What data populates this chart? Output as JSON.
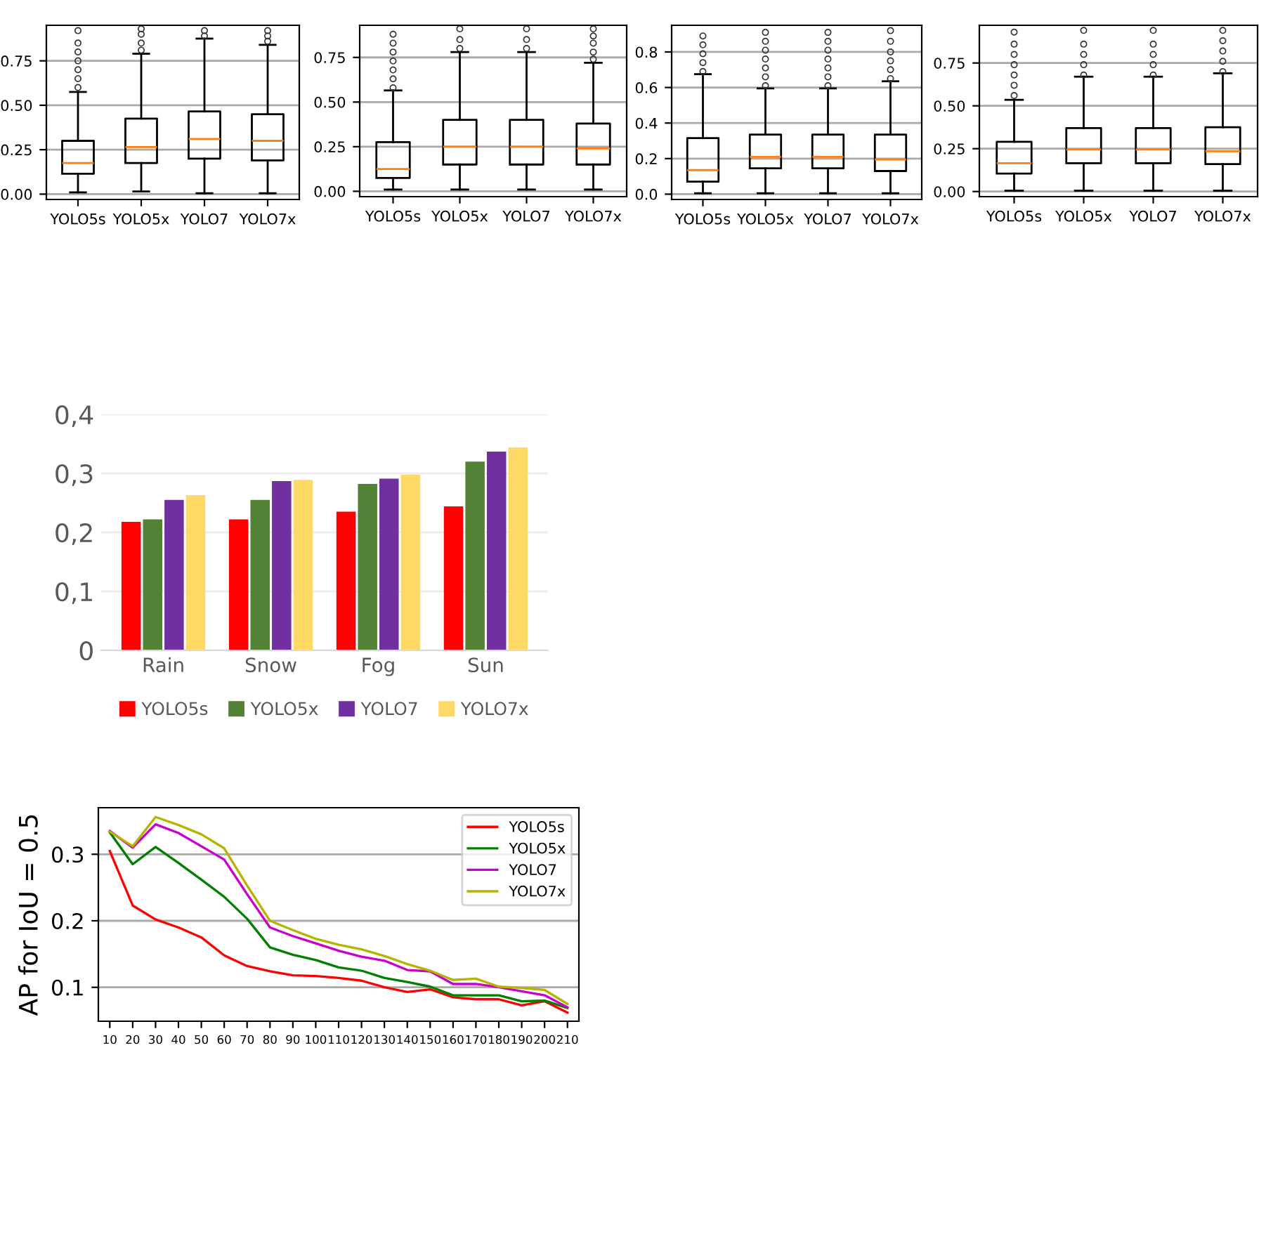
{
  "chart_data": [
    {
      "type": "box",
      "categories": [
        "YOLO5s",
        "YOLO5x",
        "YOLO7",
        "YOLO7x"
      ],
      "ylim": [
        -0.03,
        0.95
      ],
      "yticks": [
        {
          "value": 0,
          "label": "0.00"
        },
        0.25,
        {
          "value": 0.5,
          "label": "0.50"
        },
        0.75
      ],
      "grid": "y",
      "boxes": [
        {
          "low": 0.01,
          "q1": 0.115,
          "median": 0.175,
          "q3": 0.3,
          "high": 0.575,
          "outliers": [
            0.6,
            0.65,
            0.7,
            0.75,
            0.8,
            0.85,
            0.92
          ]
        },
        {
          "low": 0.015,
          "q1": 0.175,
          "median": 0.265,
          "q3": 0.425,
          "high": 0.79,
          "outliers": [
            0.81,
            0.85,
            0.9,
            0.93
          ]
        },
        {
          "low": 0.005,
          "q1": 0.2,
          "median": 0.31,
          "q3": 0.465,
          "high": 0.875,
          "outliers": [
            0.89,
            0.92
          ]
        },
        {
          "low": 0.005,
          "q1": 0.19,
          "median": 0.3,
          "q3": 0.45,
          "high": 0.84,
          "outliers": [
            0.86,
            0.89,
            0.92
          ]
        }
      ]
    },
    {
      "type": "box",
      "categories": [
        "YOLO5s",
        "YOLO5x",
        "YOLO7",
        "YOLO7x"
      ],
      "ylim": [
        -0.03,
        0.93
      ],
      "yticks": [
        {
          "value": 0,
          "label": "0.00"
        },
        0.25,
        {
          "value": 0.5,
          "label": "0.50"
        },
        0.75
      ],
      "grid": "y",
      "boxes": [
        {
          "low": 0.01,
          "q1": 0.075,
          "median": 0.125,
          "q3": 0.275,
          "high": 0.565,
          "outliers": [
            0.58,
            0.63,
            0.68,
            0.73,
            0.78,
            0.83,
            0.88
          ]
        },
        {
          "low": 0.01,
          "q1": 0.15,
          "median": 0.25,
          "q3": 0.4,
          "high": 0.78,
          "outliers": [
            0.8,
            0.85,
            0.91
          ]
        },
        {
          "low": 0.01,
          "q1": 0.15,
          "median": 0.25,
          "q3": 0.4,
          "high": 0.78,
          "outliers": [
            0.8,
            0.85,
            0.91
          ]
        },
        {
          "low": 0.01,
          "q1": 0.15,
          "median": 0.24,
          "q3": 0.38,
          "high": 0.72,
          "outliers": [
            0.74,
            0.78,
            0.83,
            0.87,
            0.91
          ]
        }
      ]
    },
    {
      "type": "box",
      "categories": [
        "YOLO5s",
        "YOLO5x",
        "YOLO7",
        "YOLO7x"
      ],
      "ylim": [
        -0.03,
        0.95
      ],
      "yticks": [
        {
          "value": 0,
          "label": "0.0"
        },
        0.2,
        0.4,
        0.6,
        0.8
      ],
      "grid": "y",
      "boxes": [
        {
          "low": 0.005,
          "q1": 0.07,
          "median": 0.135,
          "q3": 0.315,
          "high": 0.675,
          "outliers": [
            0.69,
            0.74,
            0.79,
            0.84,
            0.89
          ]
        },
        {
          "low": 0.005,
          "q1": 0.145,
          "median": 0.21,
          "q3": 0.335,
          "high": 0.595,
          "outliers": [
            0.61,
            0.66,
            0.71,
            0.76,
            0.81,
            0.86,
            0.91
          ]
        },
        {
          "low": 0.005,
          "q1": 0.145,
          "median": 0.21,
          "q3": 0.335,
          "high": 0.595,
          "outliers": [
            0.61,
            0.66,
            0.71,
            0.76,
            0.81,
            0.86,
            0.91
          ]
        },
        {
          "low": 0.005,
          "q1": 0.13,
          "median": 0.195,
          "q3": 0.335,
          "high": 0.635,
          "outliers": [
            0.65,
            0.7,
            0.75,
            0.8,
            0.86,
            0.92
          ]
        }
      ]
    },
    {
      "type": "box",
      "categories": [
        "YOLO5s",
        "YOLO5x",
        "YOLO7",
        "YOLO7x"
      ],
      "ylim": [
        -0.03,
        0.97
      ],
      "yticks": [
        {
          "value": 0,
          "label": "0.00"
        },
        0.25,
        {
          "value": 0.5,
          "label": "0.50"
        },
        0.75
      ],
      "grid": "y",
      "boxes": [
        {
          "low": 0.005,
          "q1": 0.105,
          "median": 0.165,
          "q3": 0.29,
          "high": 0.535,
          "outliers": [
            0.56,
            0.62,
            0.68,
            0.74,
            0.8,
            0.86,
            0.93
          ]
        },
        {
          "low": 0.005,
          "q1": 0.165,
          "median": 0.245,
          "q3": 0.37,
          "high": 0.67,
          "outliers": [
            0.68,
            0.74,
            0.8,
            0.86,
            0.94
          ]
        },
        {
          "low": 0.005,
          "q1": 0.165,
          "median": 0.245,
          "q3": 0.37,
          "high": 0.67,
          "outliers": [
            0.68,
            0.74,
            0.8,
            0.86,
            0.94
          ]
        },
        {
          "low": 0.005,
          "q1": 0.16,
          "median": 0.235,
          "q3": 0.375,
          "high": 0.69,
          "outliers": [
            0.7,
            0.76,
            0.82,
            0.88,
            0.94
          ]
        }
      ]
    },
    {
      "type": "bar",
      "categories": [
        "Rain",
        "Snow",
        "Fog",
        "Sun"
      ],
      "ylim": [
        0,
        0.4
      ],
      "yticks": [
        0,
        {
          "value": 0.1,
          "label": "0,1"
        },
        {
          "value": 0.2,
          "label": "0,2"
        },
        {
          "value": 0.3,
          "label": "0,3"
        },
        {
          "value": 0.4,
          "label": "0,4"
        }
      ],
      "grid": "y",
      "legend": "bottom",
      "series": [
        {
          "name": "YOLO5s",
          "color": "#ff0000",
          "values": [
            0.218,
            0.222,
            0.235,
            0.244
          ]
        },
        {
          "name": "YOLO5x",
          "color": "#538135",
          "values": [
            0.222,
            0.255,
            0.282,
            0.32
          ]
        },
        {
          "name": "YOLO7",
          "color": "#7030a0",
          "values": [
            0.255,
            0.287,
            0.291,
            0.337
          ]
        },
        {
          "name": "YOLO7x",
          "color": "#ffd966",
          "values": [
            0.263,
            0.289,
            0.298,
            0.344
          ]
        }
      ]
    },
    {
      "type": "line",
      "ylabel": "AP for IoU = 0.5",
      "categories": [
        "10",
        "20",
        "30",
        "40",
        "50",
        "60",
        "70",
        "80",
        "90",
        "100",
        "110",
        "120",
        "130",
        "140",
        "150",
        "160",
        "170",
        "180",
        "190",
        "200",
        "210"
      ],
      "ylim": [
        0.049,
        0.37
      ],
      "yticks": [
        0.1,
        0.2,
        0.3
      ],
      "grid": "y",
      "legend": "top right",
      "marker": "none",
      "line_style": "solid",
      "series": [
        {
          "name": "YOLO5s",
          "color": "#ff0000",
          "values": [
            0.305,
            0.223,
            0.202,
            0.19,
            0.175,
            0.148,
            0.132,
            0.124,
            0.118,
            0.117,
            0.114,
            0.11,
            0.1,
            0.093,
            0.097,
            0.085,
            0.082,
            0.082,
            0.073,
            0.079,
            0.062
          ]
        },
        {
          "name": "YOLO5x",
          "color": "#008000",
          "values": [
            0.333,
            0.285,
            0.311,
            0.287,
            0.262,
            0.236,
            0.203,
            0.16,
            0.149,
            0.141,
            0.13,
            0.125,
            0.114,
            0.108,
            0.101,
            0.088,
            0.088,
            0.088,
            0.079,
            0.08,
            0.069
          ]
        },
        {
          "name": "YOLO7",
          "color": "#cc00cc",
          "values": [
            0.335,
            0.31,
            0.345,
            0.332,
            0.312,
            0.292,
            0.24,
            0.19,
            0.177,
            0.166,
            0.155,
            0.146,
            0.14,
            0.126,
            0.124,
            0.105,
            0.105,
            0.1,
            0.094,
            0.088,
            0.07
          ]
        },
        {
          "name": "YOLO7x",
          "color": "#b5b500",
          "values": [
            0.334,
            0.312,
            0.356,
            0.344,
            0.33,
            0.309,
            0.253,
            0.2,
            0.186,
            0.173,
            0.164,
            0.157,
            0.147,
            0.135,
            0.125,
            0.111,
            0.113,
            0.101,
            0.099,
            0.096,
            0.075
          ]
        }
      ]
    }
  ]
}
